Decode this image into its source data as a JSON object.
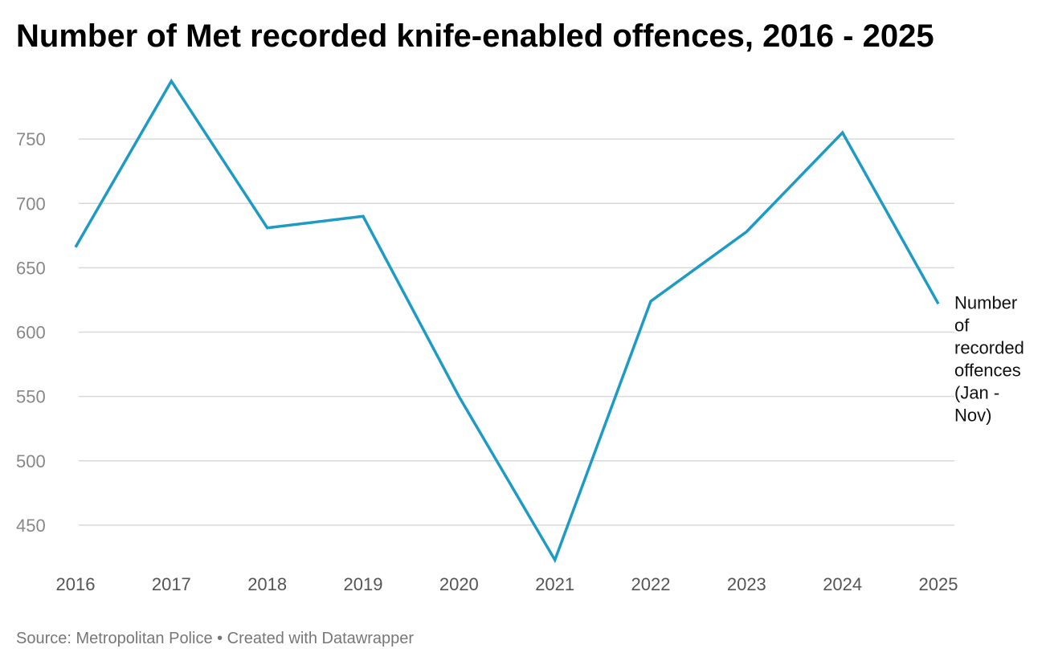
{
  "chart_data": {
    "type": "line",
    "title": "Number of Met recorded knife-enabled offences, 2016 - 2025",
    "xlabel": "",
    "ylabel": "",
    "categories": [
      "2016",
      "2017",
      "2018",
      "2019",
      "2020",
      "2021",
      "2022",
      "2023",
      "2024",
      "2025"
    ],
    "series": [
      {
        "name": "Number of recorded offences (Jan - Nov)",
        "label_lines": [
          "Number",
          "of",
          "recorded",
          "offences",
          "(Jan -",
          "Nov)"
        ],
        "values": [
          666,
          795,
          681,
          690,
          550,
          423,
          624,
          678,
          755,
          622
        ],
        "color": "#1d9bc4"
      }
    ],
    "yticks": [
      450,
      500,
      550,
      600,
      650,
      700,
      750
    ],
    "ylim": [
      420,
      795
    ],
    "grid": true,
    "legend": "direct label at end of line"
  },
  "footer": {
    "source": "Source: Metropolitan Police • Created with Datawrapper"
  },
  "colors": {
    "line": "#1d9bc4",
    "grid": "#d9d9d9",
    "axis_text": "#888888",
    "tick_label": "#555555",
    "label_text": "#111111"
  }
}
